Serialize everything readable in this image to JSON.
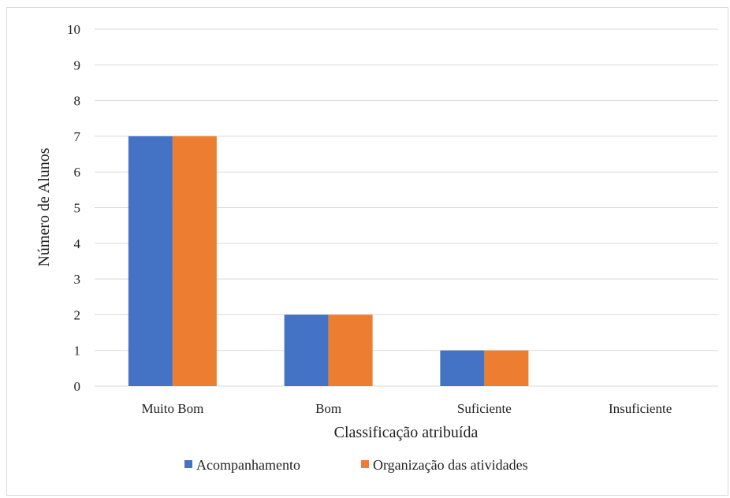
{
  "chart_data": {
    "type": "bar",
    "title": "",
    "xlabel": "Classificação atribuída",
    "ylabel": "Número de Alunos",
    "categories": [
      "Muito Bom",
      "Bom",
      "Suficiente",
      "Insuficiente"
    ],
    "series": [
      {
        "name": "Acompanhamento",
        "values": [
          7,
          2,
          1,
          0
        ],
        "color": "#4472C4"
      },
      {
        "name": "Organização das atividades",
        "values": [
          7,
          2,
          1,
          0
        ],
        "color": "#ED7D31"
      }
    ],
    "ylim": [
      0,
      10
    ],
    "yticks": [
      "0",
      "1",
      "2",
      "3",
      "4",
      "5",
      "6",
      "7",
      "8",
      "9",
      "10"
    ],
    "grid": true,
    "legend_position": "bottom",
    "gridline_color": "#d9d9d9"
  }
}
